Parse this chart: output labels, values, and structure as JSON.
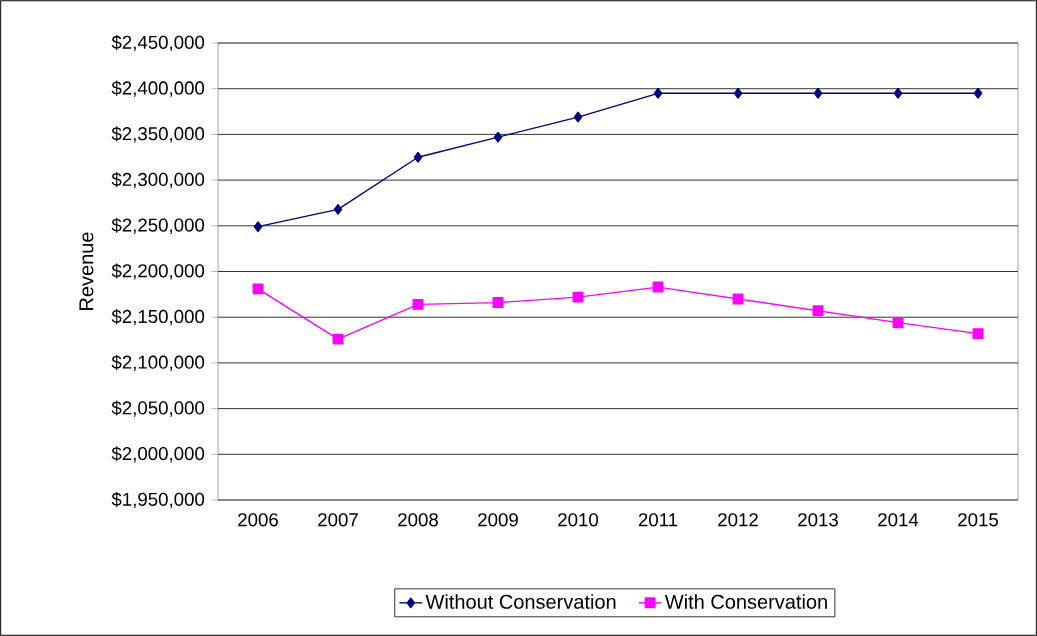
{
  "chart_data": {
    "type": "line",
    "ylabel": "Revenue",
    "categories": [
      "2006",
      "2007",
      "2008",
      "2009",
      "2010",
      "2011",
      "2012",
      "2013",
      "2014",
      "2015"
    ],
    "series": [
      {
        "name": "Without Conservation",
        "color": "#000080",
        "marker": "diamond",
        "values": [
          2249000,
          2268000,
          2325000,
          2347000,
          2369000,
          2395000,
          2395000,
          2395000,
          2395000,
          2395000
        ]
      },
      {
        "name": "With Conservation",
        "color": "#ff00ff",
        "marker": "square",
        "values": [
          2181000,
          2126000,
          2164000,
          2166000,
          2172000,
          2183000,
          2170000,
          2157000,
          2144000,
          2132000
        ]
      }
    ],
    "ylim": [
      1950000,
      2450000
    ],
    "yticks": [
      {
        "value": 1950000,
        "label": "$1,950,000"
      },
      {
        "value": 2000000,
        "label": "$2,000,000"
      },
      {
        "value": 2050000,
        "label": "$2,050,000"
      },
      {
        "value": 2100000,
        "label": "$2,100,000"
      },
      {
        "value": 2150000,
        "label": "$2,150,000"
      },
      {
        "value": 2200000,
        "label": "$2,200,000"
      },
      {
        "value": 2250000,
        "label": "$2,250,000"
      },
      {
        "value": 2300000,
        "label": "$2,300,000"
      },
      {
        "value": 2350000,
        "label": "$2,350,000"
      },
      {
        "value": 2400000,
        "label": "$2,400,000"
      },
      {
        "value": 2450000,
        "label": "$2,450,000"
      }
    ],
    "grid": "y",
    "legend": "bottom",
    "line_style": "solid"
  }
}
